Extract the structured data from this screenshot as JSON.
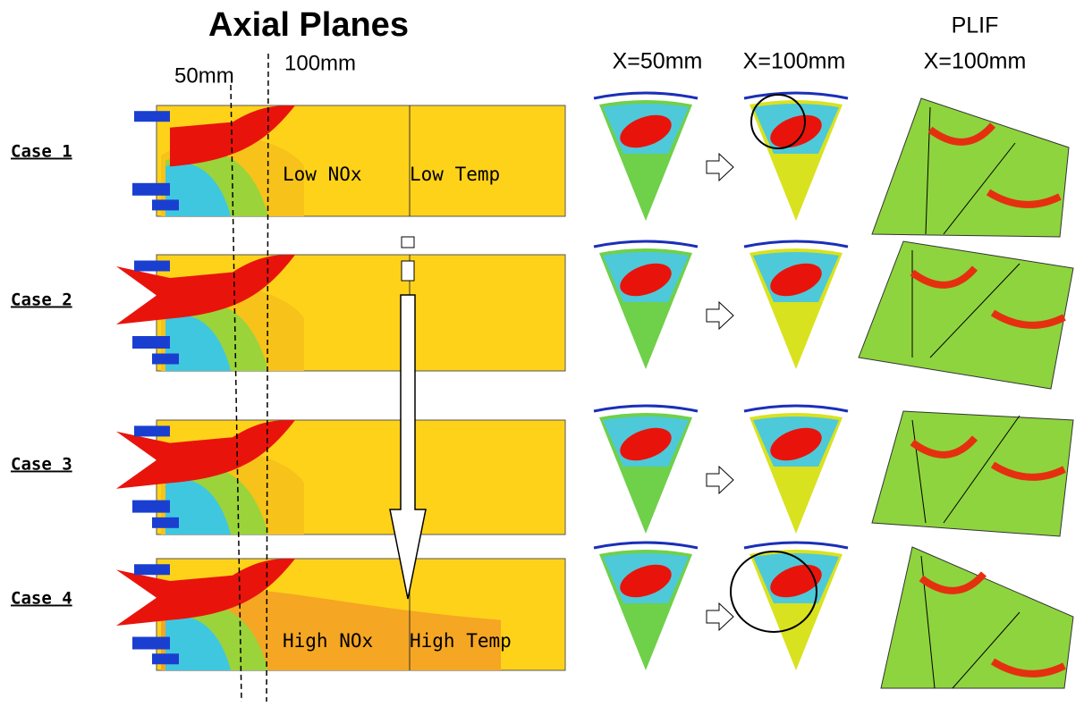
{
  "title": "Axial Planes",
  "axial_labels": [
    "50mm",
    "100mm"
  ],
  "columns": [
    "X=50mm",
    "X=100mm"
  ],
  "plif": {
    "title": "PLIF",
    "subtitle": "X=100mm"
  },
  "cases": [
    "Case 1",
    "Case 2",
    "Case 3",
    "Case 4"
  ],
  "annotations": {
    "top": [
      "Low NOx",
      "Low Temp"
    ],
    "bottom": [
      "High NOx",
      "High Temp"
    ]
  }
}
